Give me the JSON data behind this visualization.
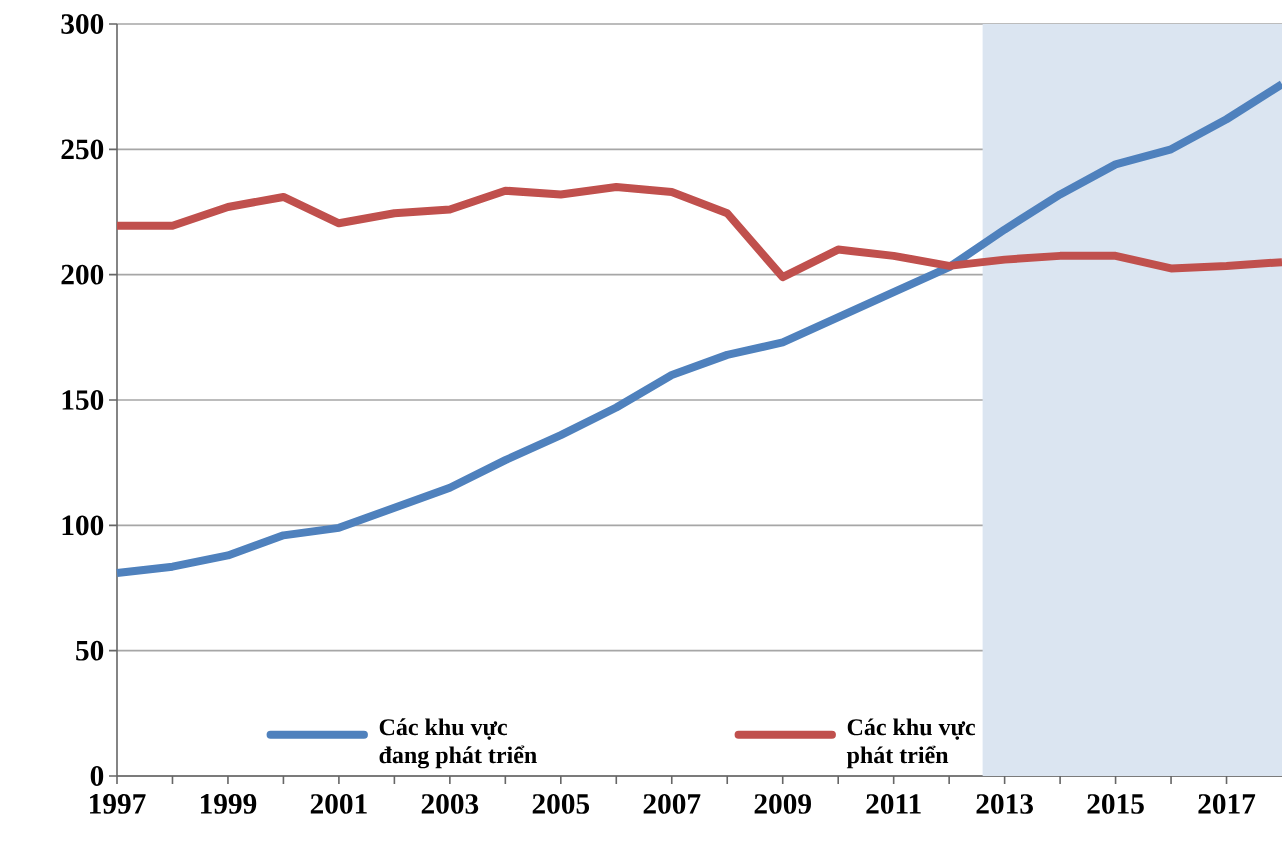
{
  "chart_data": {
    "type": "line",
    "x": [
      1997,
      1998,
      1999,
      2000,
      2001,
      2002,
      2003,
      2004,
      2005,
      2006,
      2007,
      2008,
      2009,
      2010,
      2011,
      2012,
      2013,
      2014,
      2015,
      2016,
      2017,
      2018
    ],
    "series": [
      {
        "name": "Các khu vực đang phát triển",
        "color": "#4f81bd",
        "values": [
          81,
          83.5,
          88,
          96,
          99,
          107,
          115,
          126,
          136,
          147,
          160,
          168,
          173,
          183,
          193,
          203,
          218,
          232,
          244,
          250,
          262,
          276
        ]
      },
      {
        "name": "Các khu vực phát triển",
        "color": "#c0504d",
        "values": [
          219.5,
          219.5,
          227,
          231,
          220.5,
          224.5,
          226,
          233.5,
          232,
          235,
          233,
          224.5,
          199,
          210,
          207.5,
          203.5,
          206,
          207.5,
          207.5,
          202.5,
          203.5,
          205
        ]
      }
    ],
    "xlim": [
      1997,
      2018
    ],
    "xticks": [
      1997,
      1999,
      2001,
      2003,
      2005,
      2007,
      2009,
      2011,
      2013,
      2015,
      2017
    ],
    "ylim": [
      0,
      300
    ],
    "yticks": [
      0,
      50,
      100,
      150,
      200,
      250,
      300
    ],
    "bands": [
      {
        "axis": "x",
        "from": 2012.6,
        "to": 2018,
        "color": "#dbe5f1"
      }
    ],
    "grid": "y",
    "legend": "bottom",
    "marker": "none",
    "line_style": "solid"
  }
}
